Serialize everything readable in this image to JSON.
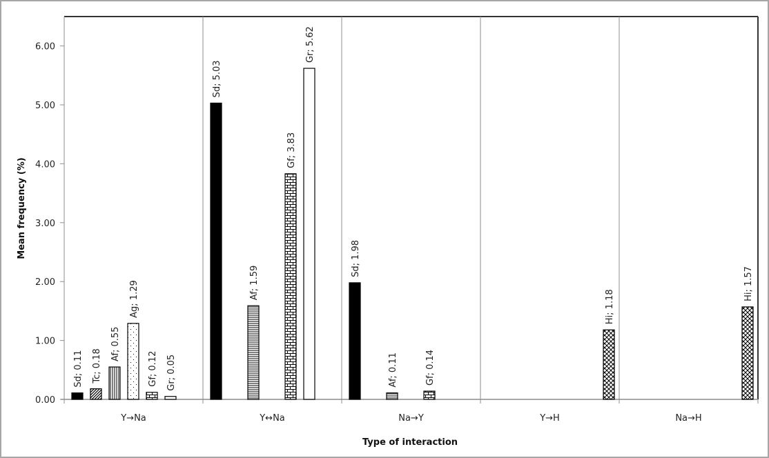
{
  "chart_data": {
    "type": "bar",
    "title": "",
    "xlabel": "Type of interaction",
    "ylabel": "Mean frequency (%)",
    "ylim": [
      0,
      6.5
    ],
    "yticks": [
      "0.00",
      "1.00",
      "2.00",
      "3.00",
      "4.00",
      "5.00",
      "6.00"
    ],
    "grid": false,
    "legend": "none (data labels used)",
    "categories": [
      "Y→Na",
      "Y↔Na",
      "Na→Y",
      "Y→H",
      "Na→H"
    ],
    "series": [
      {
        "name": "Sd",
        "pattern": "solid-black",
        "values": [
          0.11,
          5.03,
          1.98,
          null,
          null
        ]
      },
      {
        "name": "Tc",
        "pattern": "diagonal",
        "values": [
          0.18,
          null,
          null,
          null,
          null
        ]
      },
      {
        "name": "Af",
        "pattern": "stripes",
        "values": [
          0.55,
          1.59,
          0.11,
          null,
          null
        ]
      },
      {
        "name": "Ag",
        "pattern": "dots",
        "values": [
          1.29,
          null,
          null,
          null,
          null
        ]
      },
      {
        "name": "Gf",
        "pattern": "brick",
        "values": [
          0.12,
          3.83,
          0.14,
          null,
          null
        ]
      },
      {
        "name": "Gr",
        "pattern": "white",
        "values": [
          0.05,
          5.62,
          null,
          null,
          null
        ]
      },
      {
        "name": "Hi",
        "pattern": "crosshatch",
        "values": [
          null,
          null,
          null,
          1.18,
          1.57
        ]
      }
    ],
    "data_labels": [
      "Sd; 0.11",
      "Tc; 0.18",
      "Af; 0.55",
      "Ag; 1.29",
      "Gf; 0.12",
      "Gr; 0.05",
      "Sd; 5.03",
      "Af; 1.59",
      "Gf; 3.83",
      "Gr; 5.62",
      "Sd; 1.98",
      "Af; 0.11",
      "Gf; 0.14",
      "Hi; 1.18",
      "Hi; 1.57"
    ]
  }
}
